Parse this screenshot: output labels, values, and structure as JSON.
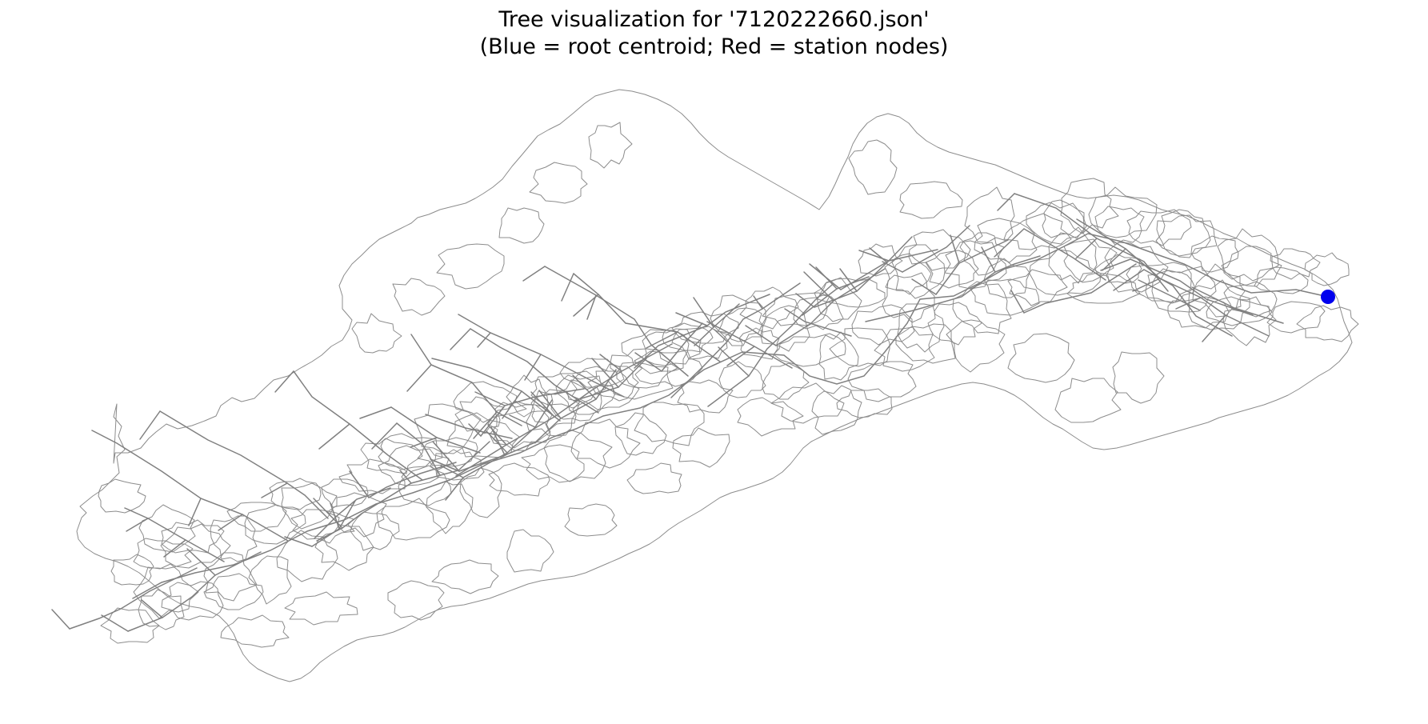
{
  "figure": {
    "title_line1": "Tree visualization for '7120222660.json'",
    "title_line2": "(Blue = root centroid; Red = station nodes)"
  },
  "colors": {
    "background": "#ffffff",
    "boundary": "#8c8c8c",
    "tree_edges": "#808080",
    "root_node": "#0000ee",
    "station_nodes": "#ff0000",
    "title_text": "#000000"
  },
  "legend_semantics": {
    "root_centroid_color": "blue",
    "station_node_color": "red",
    "station_nodes_visible": 0
  }
}
